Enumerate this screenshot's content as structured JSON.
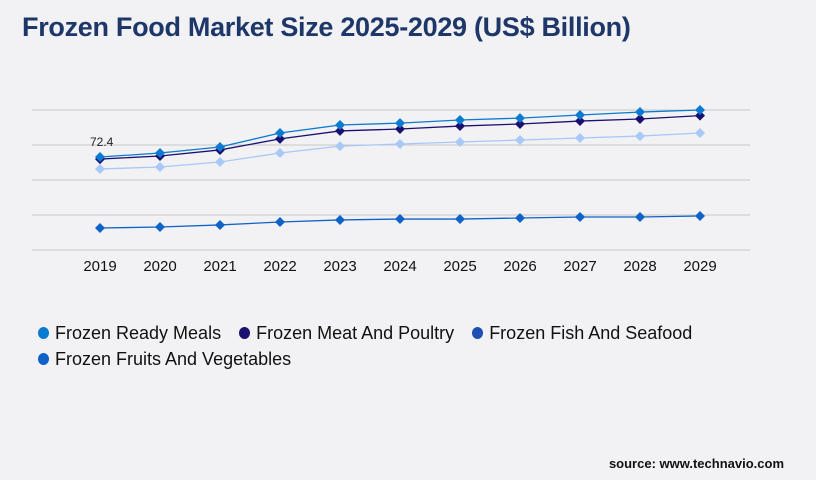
{
  "title": "Frozen Food Market Size 2025-2029 (US$ Billion)",
  "source": "source: www.technavio.com",
  "chart_data": {
    "type": "line",
    "title": "Frozen Food Market Size 2025-2029 (US$ Billion)",
    "categories": [
      "2019",
      "2020",
      "2021",
      "2022",
      "2023",
      "2024",
      "2025",
      "2026",
      "2027",
      "2028",
      "2029"
    ],
    "ylim": [
      0,
      109
    ],
    "grid": true,
    "legend_position": "bottom-left",
    "annotations": [
      {
        "series": 0,
        "index": 0,
        "label": "72.4"
      }
    ],
    "series": [
      {
        "name": "Frozen Ready Meals",
        "color": "#0a7bd0",
        "legend_color": "#0a7bd0",
        "values": [
          72.4,
          75.5,
          80.2,
          91.1,
          97.3,
          98.8,
          101.2,
          102.7,
          105.1,
          107.4,
          109.0
        ]
      },
      {
        "name": "Frozen Meat And Poultry",
        "color": "#1a1070",
        "legend_color": "#1a1070",
        "values": [
          70.8,
          73.2,
          77.9,
          86.5,
          92.7,
          94.2,
          96.5,
          98.1,
          100.4,
          102.0,
          104.6
        ]
      },
      {
        "name": "Frozen Fish And Seafood",
        "color": "#a8c8f8",
        "legend_color": "#1f4fb5",
        "values": [
          63.1,
          64.6,
          68.5,
          75.5,
          80.9,
          82.5,
          84.1,
          85.6,
          87.2,
          88.7,
          91.1
        ]
      },
      {
        "name": "Frozen Fruits And Vegetables",
        "color": "#0f62c8",
        "legend_color": "#0f62c8",
        "values": [
          17.1,
          17.9,
          19.5,
          21.8,
          23.4,
          24.1,
          24.1,
          24.9,
          25.7,
          25.7,
          26.5
        ]
      }
    ]
  }
}
